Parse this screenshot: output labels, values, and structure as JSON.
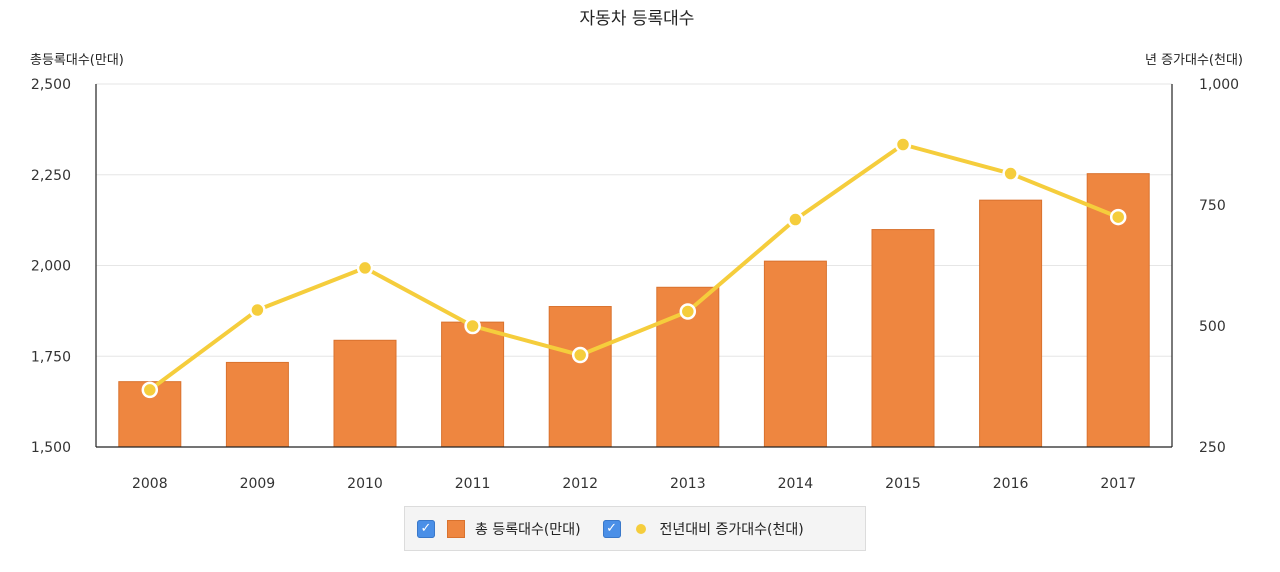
{
  "chart_data": {
    "type": "bar+line",
    "title": "자동차 등록대수",
    "categories": [
      "2008",
      "2009",
      "2010",
      "2011",
      "2012",
      "2013",
      "2014",
      "2015",
      "2016",
      "2017"
    ],
    "y_left": {
      "label": "총등록대수(만대)",
      "ylim": [
        1500,
        2500
      ],
      "ticks": [
        "1,500",
        "1,750",
        "2,000",
        "2,250",
        "2,500"
      ],
      "tick_values": [
        1500,
        1750,
        2000,
        2250,
        2500
      ]
    },
    "y_right": {
      "label": "년 증가대수(천대)",
      "ylim": [
        250,
        1000
      ],
      "ticks": [
        "250",
        "500",
        "750",
        "1,000"
      ],
      "tick_values": [
        250,
        500,
        750,
        1000
      ]
    },
    "grid": true,
    "legend_position": "bottom",
    "series": [
      {
        "name": "총 등록대수(만대)",
        "type": "bar",
        "axis": "left",
        "color": "#ee8640",
        "values": [
          1680,
          1733,
          1794,
          1844,
          1887,
          1940,
          2012,
          2099,
          2180,
          2253
        ]
      },
      {
        "name": "전년대비 증가대수(천대)",
        "type": "line",
        "axis": "right",
        "color": "#f5cd3c",
        "values": [
          368,
          533,
          620,
          500,
          440,
          530,
          720,
          875,
          815,
          725
        ]
      }
    ]
  }
}
